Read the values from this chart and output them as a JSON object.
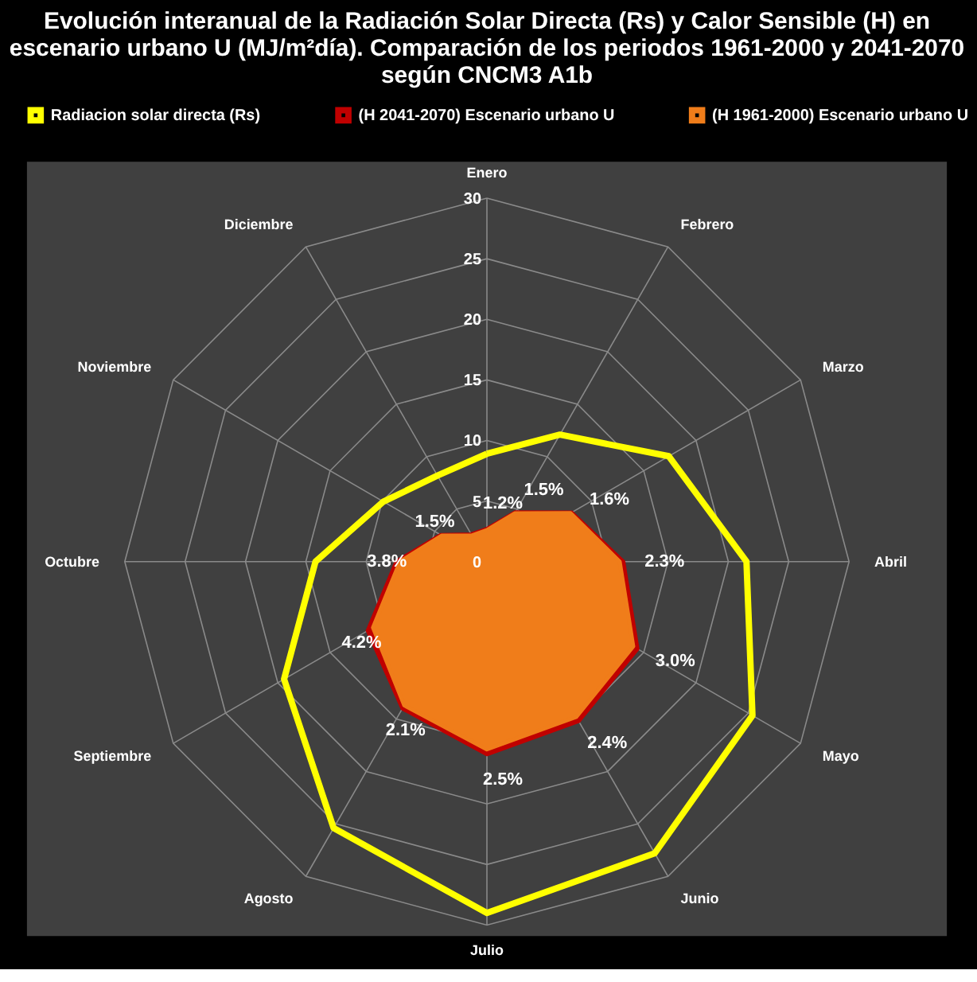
{
  "chart_data": {
    "type": "radar",
    "title": "Evolución interanual de la Radiación Solar Directa (Rs) y Calor Sensible (H) en escenario urbano U (MJ/m²día). Comparación de los periodos 1961-2000 y 2041-2070 según CNCM3 A1b",
    "categories": [
      "Enero",
      "Febrero",
      "Marzo",
      "Abril",
      "Mayo",
      "Junio",
      "Julio",
      "Agosto",
      "Septiembre",
      "Octubre",
      "Noviembre",
      "Diciembre"
    ],
    "series": [
      {
        "name": "Radiacion solar directa (Rs)",
        "color": "#ffff00",
        "values": [
          8.9,
          12.1,
          17.4,
          21.5,
          25.4,
          27.8,
          29.0,
          25.4,
          19.4,
          14.2,
          9.9,
          8.2
        ]
      },
      {
        "name": "(H 2041-2070) Escenario urbano U",
        "color": "#c00000",
        "values": [
          2.7,
          4.7,
          8.1,
          11.3,
          14.4,
          15.2,
          15.9,
          14.0,
          11.4,
          7.5,
          4.4,
          2.6
        ]
      },
      {
        "name": "(H 1961-2000) Escenario urbano U",
        "color": "#f07d1a",
        "values": [
          2.6,
          4.6,
          8.0,
          11.0,
          14.0,
          14.8,
          15.5,
          13.7,
          10.9,
          7.2,
          4.3,
          2.5
        ]
      }
    ],
    "annotations": [
      {
        "text": "1.2%",
        "x": "Enero"
      },
      {
        "text": "1.5%",
        "x": "Febrero"
      },
      {
        "text": "1.6%",
        "x": "Marzo"
      },
      {
        "text": "2.3%",
        "x": "Abril"
      },
      {
        "text": "3.0%",
        "x": "Mayo"
      },
      {
        "text": "2.4%",
        "x": "Junio"
      },
      {
        "text": "2.5%",
        "x": "Julio"
      },
      {
        "text": "2.1%",
        "x": "Agosto"
      },
      {
        "text": "4.2%",
        "x": "Septiembre"
      },
      {
        "text": "3.8%",
        "x": "Octubre"
      },
      {
        "text": "1.5%",
        "x": "Noviembre"
      }
    ],
    "ylim": [
      0,
      30
    ],
    "yticks": [
      0,
      5,
      10,
      15,
      20,
      25,
      30
    ],
    "grid": true,
    "legend": "top"
  }
}
